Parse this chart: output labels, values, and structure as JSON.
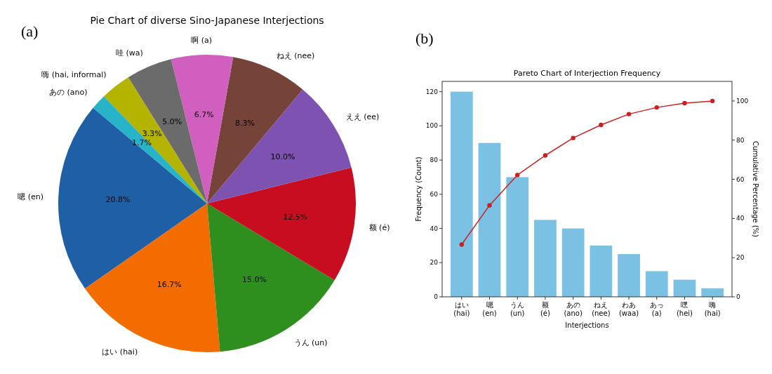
{
  "chart_data": [
    {
      "type": "pie",
      "title": "Pie Chart of diverse Sino-Japanese Interjections",
      "annotations": [
        "(a)"
      ],
      "value_labels": [
        "20.8%",
        "16.7%",
        "15.0%",
        "12.5%",
        "10.0%",
        "8.3%",
        "6.7%",
        "5.0%",
        "3.3%",
        "1.7%"
      ],
      "categories": [
        "嗯 (en)",
        "はい (hai)",
        "うん (un)",
        "额 (é)",
        "ええ (ee)",
        "ねえ (nee)",
        "啊 (a)",
        "哇 (wa)",
        "嗨 (hai, informal)",
        "あの (ano)"
      ],
      "values": [
        20.8,
        16.7,
        15.0,
        12.5,
        10.0,
        8.3,
        6.7,
        5.0,
        3.3,
        1.7
      ],
      "colors": [
        "#1f5fa6",
        "#f36c00",
        "#2f8f1e",
        "#c80d20",
        "#7e52b0",
        "#754338",
        "#d05fbf",
        "#6b6b6b",
        "#b3b300",
        "#28b4c8"
      ]
    },
    {
      "type": "bar",
      "title": "Pareto Chart of Interjection Frequency",
      "annotations": [
        "(b)"
      ],
      "xlabel": "Interjections",
      "ylabel": "Frequency (Count)",
      "y2label": "Cumulative Percentage (%)",
      "categories": [
        "はい (hai)",
        "嗯 (en)",
        "うん (un)",
        "额 (é)",
        "あの (ano)",
        "ねえ (nee)",
        "わあ (waa)",
        "あっ (a)",
        "嘿 (hei)",
        "嗨 (hai)"
      ],
      "ylim": [
        0,
        126
      ],
      "yticks": [
        0,
        20,
        40,
        60,
        80,
        100,
        120
      ],
      "y2lim": [
        0,
        110
      ],
      "y2ticks": [
        0,
        20,
        40,
        60,
        80,
        100
      ],
      "grid": false,
      "series": [
        {
          "type": "bar",
          "color": "#7bc1e4",
          "values": [
            120,
            90,
            70,
            45,
            40,
            30,
            25,
            15,
            10,
            5
          ]
        },
        {
          "type": "line",
          "axis": "y2",
          "color": "#cc1f1f",
          "marker": "circle",
          "line_style": "solid",
          "values": [
            26.7,
            46.7,
            62.2,
            72.2,
            81.1,
            87.8,
            93.3,
            96.7,
            98.9,
            100
          ]
        }
      ]
    }
  ]
}
